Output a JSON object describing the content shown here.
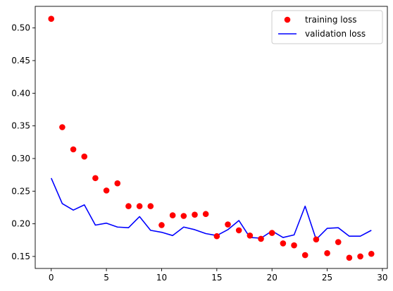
{
  "chart_data": {
    "type": "scatter",
    "title": "",
    "xlabel": "",
    "ylabel": "",
    "xlim": [
      -1.45,
      30.45
    ],
    "ylim": [
      0.1316,
      0.5331
    ],
    "xticks": [
      0,
      5,
      10,
      15,
      20,
      25,
      30
    ],
    "xtick_labels": [
      "0",
      "5",
      "10",
      "15",
      "20",
      "25",
      "30"
    ],
    "yticks": [
      0.15,
      0.2,
      0.25,
      0.3,
      0.35,
      0.4,
      0.45,
      0.5
    ],
    "ytick_labels": [
      "0.15",
      "0.20",
      "0.25",
      "0.30",
      "0.35",
      "0.40",
      "0.45",
      "0.50"
    ],
    "grid": false,
    "legend_position": "top-right",
    "series": [
      {
        "name": "training loss",
        "type": "scatter",
        "color": "#ff0000",
        "x": [
          0,
          1,
          2,
          3,
          4,
          5,
          6,
          7,
          8,
          9,
          10,
          11,
          12,
          13,
          14,
          15,
          16,
          17,
          18,
          19,
          20,
          21,
          22,
          23,
          24,
          25,
          26,
          27,
          28,
          29
        ],
        "values": [
          0.514,
          0.348,
          0.314,
          0.303,
          0.27,
          0.251,
          0.262,
          0.227,
          0.227,
          0.227,
          0.198,
          0.213,
          0.212,
          0.214,
          0.215,
          0.181,
          0.199,
          0.19,
          0.182,
          0.177,
          0.186,
          0.17,
          0.167,
          0.152,
          0.176,
          0.155,
          0.172,
          0.148,
          0.15,
          0.154
        ]
      },
      {
        "name": "validation loss",
        "type": "line",
        "color": "#0000ff",
        "x": [
          0,
          1,
          2,
          3,
          4,
          5,
          6,
          7,
          8,
          9,
          10,
          11,
          12,
          13,
          14,
          15,
          16,
          17,
          18,
          19,
          20,
          21,
          22,
          23,
          24,
          25,
          26,
          27,
          28,
          29
        ],
        "values": [
          0.27,
          0.231,
          0.221,
          0.229,
          0.198,
          0.201,
          0.195,
          0.194,
          0.211,
          0.19,
          0.187,
          0.182,
          0.195,
          0.191,
          0.185,
          0.182,
          0.191,
          0.205,
          0.179,
          0.178,
          0.189,
          0.179,
          0.183,
          0.227,
          0.176,
          0.193,
          0.194,
          0.181,
          0.181,
          0.19
        ]
      }
    ]
  }
}
